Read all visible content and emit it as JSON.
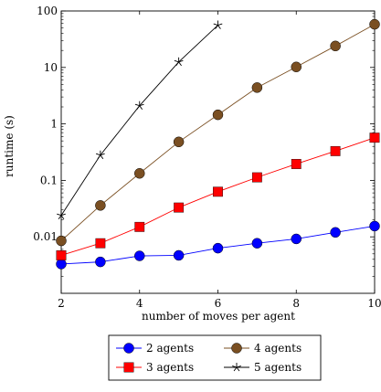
{
  "chart_data": {
    "type": "line",
    "xlabel": "number of moves per agent",
    "ylabel": "runtime (s)",
    "xlim": [
      2,
      10
    ],
    "ylim": [
      0.001,
      100
    ],
    "y_scale": "log",
    "grid": false,
    "legend_placement": "bottom-center",
    "x_ticks": [
      2,
      4,
      6,
      8,
      10
    ],
    "x_tick_labels": [
      "2",
      "4",
      "6",
      "8",
      "10"
    ],
    "y_ticks": [
      0.01,
      0.1,
      1,
      10,
      100
    ],
    "y_tick_labels": [
      "0.01",
      "0.1",
      "1",
      "10",
      "100"
    ],
    "series": [
      {
        "name": "2 agents",
        "color": "#0000ff",
        "marker": "circle",
        "x": [
          2,
          3,
          4,
          5,
          6,
          7,
          8,
          9,
          10
        ],
        "values": [
          0.0033,
          0.0036,
          0.0046,
          0.0047,
          0.0063,
          0.0077,
          0.0092,
          0.012,
          0.0155
        ]
      },
      {
        "name": "3 agents",
        "color": "#ff0000",
        "marker": "square",
        "x": [
          2,
          3,
          4,
          5,
          6,
          7,
          8,
          9,
          10
        ],
        "values": [
          0.0047,
          0.0077,
          0.015,
          0.033,
          0.063,
          0.113,
          0.195,
          0.33,
          0.57
        ]
      },
      {
        "name": "4 agents",
        "color": "#7a4f22",
        "marker": "circle",
        "x": [
          2,
          3,
          4,
          5,
          6,
          7,
          8,
          9,
          10
        ],
        "values": [
          0.0085,
          0.036,
          0.133,
          0.48,
          1.45,
          4.4,
          10.2,
          24,
          58
        ]
      },
      {
        "name": "5 agents",
        "color": "#000000",
        "marker": "star",
        "x": [
          2,
          3,
          4,
          5,
          6
        ],
        "values": [
          0.024,
          0.28,
          2.1,
          12.5,
          56
        ]
      }
    ],
    "legend_order": [
      0,
      2,
      1,
      3
    ]
  }
}
